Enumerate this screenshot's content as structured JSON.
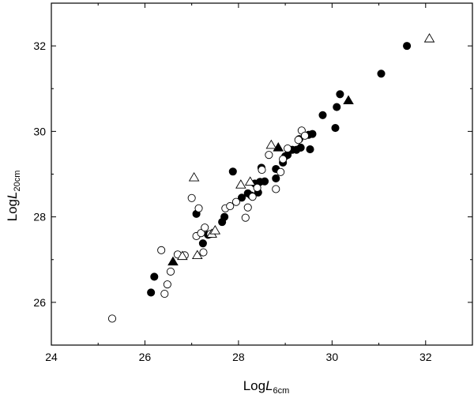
{
  "chart_data": {
    "type": "scatter",
    "xlabel": {
      "prefix": "Log",
      "var": "L",
      "sub": "6cm"
    },
    "ylabel": {
      "prefix": "Log",
      "var": "L",
      "sub": "20cm"
    },
    "xlim": [
      24,
      33
    ],
    "ylim": [
      25,
      33
    ],
    "x_ticks": [
      24,
      26,
      28,
      30,
      32
    ],
    "y_ticks": [
      26,
      28,
      30,
      32
    ],
    "grid": false,
    "series": [
      {
        "marker": "filled-circle",
        "color": "#000000",
        "points": [
          [
            26.13,
            26.23
          ],
          [
            26.2,
            26.6
          ],
          [
            27.1,
            28.07
          ],
          [
            27.24,
            27.38
          ],
          [
            27.35,
            27.58
          ],
          [
            27.65,
            27.88
          ],
          [
            27.7,
            28.0
          ],
          [
            27.88,
            29.06
          ],
          [
            28.07,
            28.45
          ],
          [
            28.2,
            28.55
          ],
          [
            28.27,
            28.5
          ],
          [
            28.35,
            28.78
          ],
          [
            28.42,
            28.57
          ],
          [
            28.46,
            28.82
          ],
          [
            28.49,
            29.15
          ],
          [
            28.56,
            28.83
          ],
          [
            28.8,
            28.9
          ],
          [
            28.8,
            29.12
          ],
          [
            28.95,
            29.27
          ],
          [
            29.0,
            29.42
          ],
          [
            29.05,
            29.45
          ],
          [
            29.15,
            29.57
          ],
          [
            29.24,
            29.57
          ],
          [
            29.3,
            29.82
          ],
          [
            29.33,
            29.62
          ],
          [
            29.5,
            29.92
          ],
          [
            29.53,
            29.58
          ],
          [
            29.58,
            29.94
          ],
          [
            29.8,
            30.38
          ],
          [
            30.07,
            30.08
          ],
          [
            30.1,
            30.57
          ],
          [
            30.17,
            30.87
          ],
          [
            31.05,
            31.35
          ],
          [
            31.6,
            32.0
          ]
        ]
      },
      {
        "marker": "open-circle",
        "color": "#000000",
        "points": [
          [
            25.3,
            25.62
          ],
          [
            26.35,
            27.22
          ],
          [
            26.42,
            26.2
          ],
          [
            26.48,
            26.42
          ],
          [
            26.55,
            26.72
          ],
          [
            26.7,
            27.12
          ],
          [
            26.85,
            27.1
          ],
          [
            27.0,
            28.44
          ],
          [
            27.1,
            27.55
          ],
          [
            27.15,
            28.2
          ],
          [
            27.2,
            27.62
          ],
          [
            27.25,
            27.17
          ],
          [
            27.28,
            27.75
          ],
          [
            27.4,
            27.6
          ],
          [
            27.72,
            28.2
          ],
          [
            27.82,
            28.25
          ],
          [
            27.95,
            28.35
          ],
          [
            28.15,
            27.98
          ],
          [
            28.2,
            28.22
          ],
          [
            28.3,
            28.47
          ],
          [
            28.4,
            28.68
          ],
          [
            28.5,
            29.1
          ],
          [
            28.65,
            29.45
          ],
          [
            28.8,
            28.65
          ],
          [
            28.9,
            29.05
          ],
          [
            28.95,
            29.35
          ],
          [
            29.05,
            29.6
          ],
          [
            29.28,
            29.8
          ],
          [
            29.35,
            30.02
          ],
          [
            29.42,
            29.9
          ]
        ]
      },
      {
        "marker": "filled-triangle",
        "color": "#000000",
        "points": [
          [
            26.6,
            26.95
          ],
          [
            28.85,
            29.62
          ],
          [
            30.35,
            30.72
          ]
        ]
      },
      {
        "marker": "open-triangle",
        "color": "#000000",
        "points": [
          [
            26.8,
            27.08
          ],
          [
            27.05,
            28.92
          ],
          [
            27.12,
            27.1
          ],
          [
            27.43,
            27.6
          ],
          [
            27.5,
            27.68
          ],
          [
            28.05,
            28.75
          ],
          [
            28.25,
            28.82
          ],
          [
            28.7,
            29.68
          ],
          [
            32.08,
            32.17
          ]
        ]
      }
    ]
  }
}
